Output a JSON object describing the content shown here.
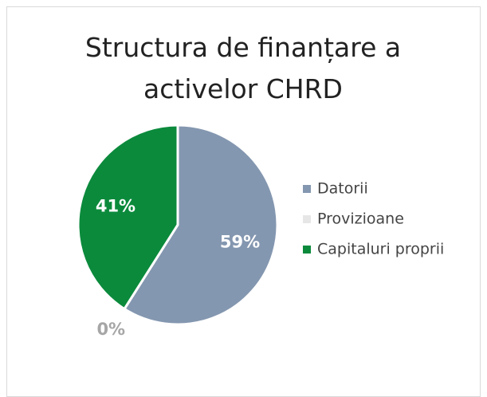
{
  "chart_data": {
    "type": "pie",
    "title": "Structura de finanțare a activelor CHRD",
    "categories": [
      "Datorii",
      "Provizioane",
      "Capitaluri proprii"
    ],
    "values": [
      59,
      0,
      41
    ],
    "value_labels": [
      "59%",
      "0%",
      "41%"
    ],
    "colors": [
      "#8497b0",
      "#e7e6e6",
      "#0b8a3c"
    ],
    "label_colors": [
      "#ffffff",
      "#a6a6a6",
      "#ffffff"
    ],
    "legend": "right"
  }
}
